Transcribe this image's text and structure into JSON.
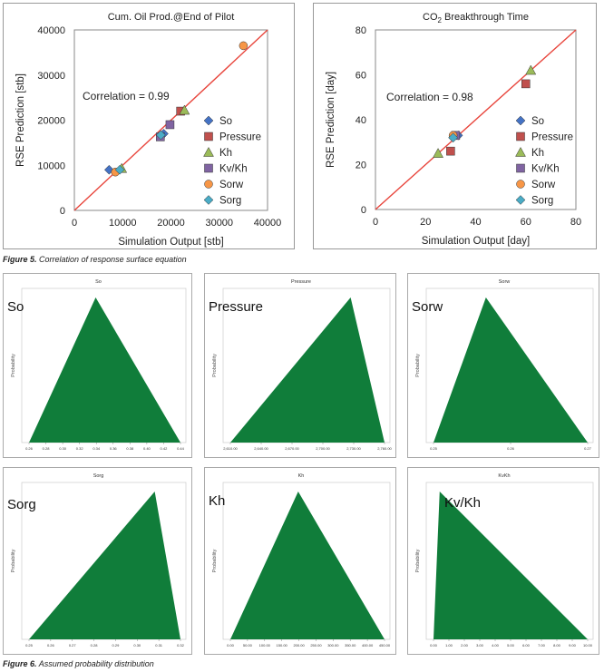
{
  "figure5": {
    "caption_label": "Figure 5.",
    "caption_text": "Correlation of response surface equation"
  },
  "figure6": {
    "caption_label": "Figure 6.",
    "caption_text": "Assumed probability distribution"
  },
  "colors": {
    "So": "#4472c4",
    "Pressure": "#c0504d",
    "Kh": "#9bbb59",
    "Kv/Kh": "#8064a2",
    "Sorw": "#f79646",
    "Sorg": "#4bacc6",
    "line": "#e8453c",
    "dist_fill": "#107d3a"
  },
  "chart_data": [
    {
      "type": "scatter",
      "title": "Cum. Oil Prod.@End of Pilot",
      "xlabel": "Simulation Output [stb]",
      "ylabel": "RSE Prediction [stb]",
      "xlim": [
        0,
        40000
      ],
      "ylim": [
        0,
        40000
      ],
      "xticks": [
        "0",
        "10000",
        "20000",
        "30000",
        "40000"
      ],
      "yticks": [
        "0",
        "10000",
        "20000",
        "30000",
        "40000"
      ],
      "annotation": "Correlation = 0.99",
      "legend_position": "right",
      "series": [
        {
          "name": "So",
          "marker": "diamond",
          "points": [
            [
              7200,
              9000
            ],
            [
              18500,
              17000
            ]
          ]
        },
        {
          "name": "Pressure",
          "marker": "square",
          "points": [
            [
              22000,
              22000
            ]
          ]
        },
        {
          "name": "Kh",
          "marker": "triangle",
          "points": [
            [
              9800,
              9300
            ],
            [
              22800,
              22200
            ]
          ]
        },
        {
          "name": "Kv/Kh",
          "marker": "square",
          "points": [
            [
              17800,
              16300
            ],
            [
              19800,
              19000
            ]
          ]
        },
        {
          "name": "Sorw",
          "marker": "circle",
          "points": [
            [
              8500,
              8500
            ],
            [
              35000,
              36500
            ]
          ]
        },
        {
          "name": "Sorg",
          "marker": "diamond",
          "points": [
            [
              9400,
              9000
            ],
            [
              17900,
              16700
            ]
          ]
        }
      ]
    },
    {
      "type": "scatter",
      "title_main": "CO",
      "title_sub": "2",
      "title_rest": " Breakthrough Time",
      "xlabel": "Simulation Output [day]",
      "ylabel": "RSE Prediction [day]",
      "xlim": [
        0,
        80
      ],
      "ylim": [
        0,
        80
      ],
      "xticks": [
        "0",
        "20",
        "40",
        "60",
        "80"
      ],
      "yticks": [
        "0",
        "20",
        "40",
        "60",
        "80"
      ],
      "annotation": "Correlation = 0.98",
      "legend_position": "right",
      "series": [
        {
          "name": "So",
          "marker": "diamond",
          "points": [
            [
              31,
              32
            ],
            [
              33,
              33
            ]
          ]
        },
        {
          "name": "Pressure",
          "marker": "square",
          "points": [
            [
              30,
              26
            ],
            [
              60,
              56
            ]
          ]
        },
        {
          "name": "Kh",
          "marker": "triangle",
          "points": [
            [
              25,
              25
            ],
            [
              62,
              62
            ]
          ]
        },
        {
          "name": "Kv/Kh",
          "marker": "square",
          "points": [
            [
              32,
              33
            ]
          ]
        },
        {
          "name": "Sorw",
          "marker": "circle",
          "points": [
            [
              31,
              33
            ]
          ]
        },
        {
          "name": "Sorg",
          "marker": "diamond",
          "points": [
            [
              31,
              32
            ]
          ]
        }
      ]
    }
  ],
  "distributions": [
    {
      "title": "So",
      "label": "So",
      "ylabel": "Probability",
      "mode_fraction": 0.44,
      "ticks": [
        "0.26",
        "0.28",
        "0.30",
        "0.32",
        "0.34",
        "0.36",
        "0.38",
        "0.40",
        "0.42",
        "0.44"
      ]
    },
    {
      "title": "Pressure",
      "label": "Pressure",
      "ylabel": "Probability",
      "mode_fraction": 0.78,
      "ticks": [
        "2,610.00",
        "2,640.00",
        "2,670.00",
        "2,700.00",
        "2,730.00",
        "2,760.00"
      ]
    },
    {
      "title": "Sorw",
      "label": "Sorw",
      "ylabel": "Probability",
      "mode_fraction": 0.34,
      "ticks": [
        "0.25",
        "0.26",
        "0.27"
      ]
    },
    {
      "title": "Sorg",
      "label": "Sorg",
      "ylabel": "Probability",
      "mode_fraction": 0.83,
      "ticks": [
        "0.25",
        "0.26",
        "0.27",
        "0.28",
        "0.29",
        "0.30",
        "0.31",
        "0.32"
      ]
    },
    {
      "title": "Kh",
      "label": "Kh",
      "ylabel": "Probability",
      "mode_fraction": 0.44,
      "ticks": [
        "0.00",
        "50.00",
        "100.00",
        "150.00",
        "200.00",
        "250.00",
        "300.00",
        "350.00",
        "400.00",
        "450.00"
      ]
    },
    {
      "title": "KvKh",
      "label": "Kv/Kh",
      "ylabel": "Probability",
      "mode_fraction": 0.04,
      "ticks": [
        "0.00",
        "1.00",
        "2.00",
        "3.00",
        "4.00",
        "5.00",
        "6.00",
        "7.00",
        "8.00",
        "9.00",
        "10.00"
      ]
    }
  ]
}
